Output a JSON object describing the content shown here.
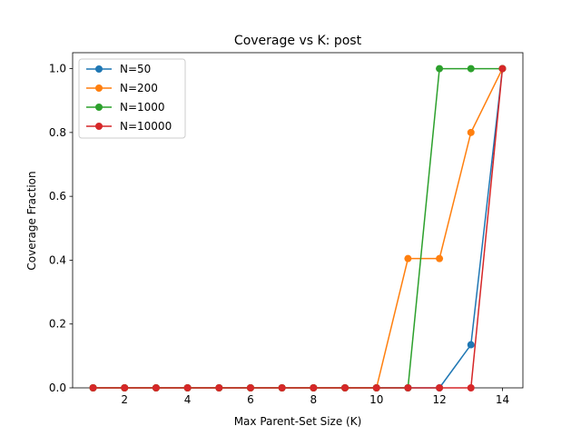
{
  "chart_data": {
    "type": "line",
    "title": "Coverage vs K: post",
    "xlabel": "Max Parent-Set Size (K)",
    "ylabel": "Coverage Fraction",
    "xlim": [
      0.35,
      14.65
    ],
    "ylim": [
      0,
      1.05
    ],
    "xticks": [
      2,
      4,
      6,
      8,
      10,
      12,
      14
    ],
    "yticks": [
      0.0,
      0.2,
      0.4,
      0.6,
      0.8,
      1.0
    ],
    "xtick_labels": [
      "2",
      "4",
      "6",
      "8",
      "10",
      "12",
      "14"
    ],
    "ytick_labels": [
      "0.0",
      "0.2",
      "0.4",
      "0.6",
      "0.8",
      "1.0"
    ],
    "legend_position": "top-left",
    "grid": false,
    "x": [
      1,
      2,
      3,
      4,
      5,
      6,
      7,
      8,
      9,
      10,
      11,
      12,
      13,
      14
    ],
    "series": [
      {
        "name": "N=50",
        "color": "#1f77b4",
        "values": [
          0,
          0,
          0,
          0,
          0,
          0,
          0,
          0,
          0,
          0,
          0,
          0,
          0.135,
          1.0
        ]
      },
      {
        "name": "N=200",
        "color": "#ff7f0e",
        "values": [
          0,
          0,
          0,
          0,
          0,
          0,
          0,
          0,
          0,
          0,
          0.405,
          0.405,
          0.8,
          1.0
        ]
      },
      {
        "name": "N=1000",
        "color": "#2ca02c",
        "values": [
          0,
          0,
          0,
          0,
          0,
          0,
          0,
          0,
          0,
          0,
          0,
          1.0,
          1.0,
          1.0
        ]
      },
      {
        "name": "N=10000",
        "color": "#d62728",
        "values": [
          0,
          0,
          0,
          0,
          0,
          0,
          0,
          0,
          0,
          0,
          0,
          0,
          0,
          1.0
        ]
      }
    ]
  }
}
